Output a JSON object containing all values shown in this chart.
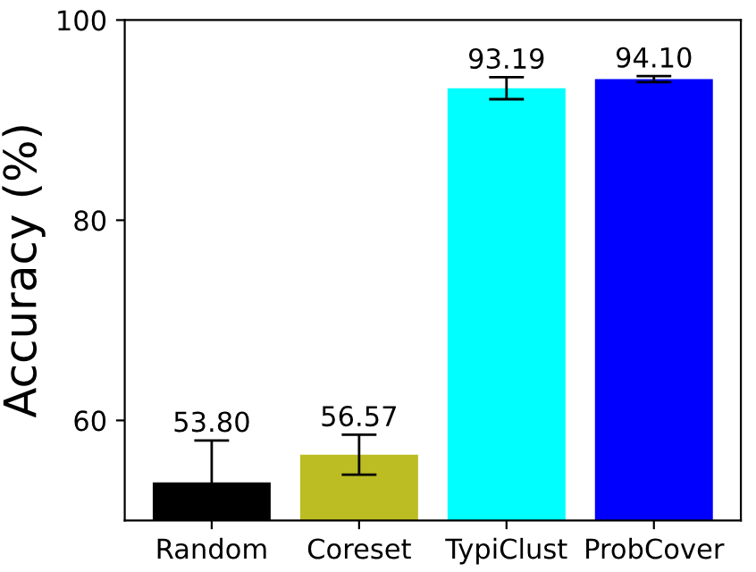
{
  "chart_data": {
    "type": "bar",
    "ylabel": "Accuracy (%)",
    "categories": [
      "Random",
      "Coreset",
      "TypiClust",
      "ProbCover"
    ],
    "values": [
      53.8,
      56.57,
      93.19,
      94.1
    ],
    "colors": [
      "#000000",
      "#bcbd22",
      "#00ffff",
      "#0000ff"
    ],
    "errors": [
      4.2,
      2.0,
      1.1,
      0.3
    ],
    "value_labels": [
      "53.80",
      "56.57",
      "93.19",
      "94.10"
    ],
    "ylim": [
      50,
      100
    ],
    "yticks": [
      60,
      80,
      100
    ],
    "grid": false,
    "legend": false
  }
}
